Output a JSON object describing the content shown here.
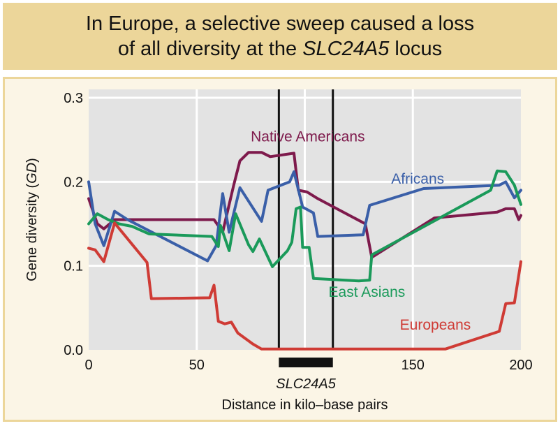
{
  "title": {
    "line1": "In Europe, a selective sweep caused a loss",
    "line2_prefix": "of all diversity at the ",
    "line2_gene": "SLC24A5",
    "line2_suffix": " locus"
  },
  "chart_data": {
    "type": "line",
    "title": "In Europe, a selective sweep caused a loss of all diversity at the SLC24A5 locus",
    "xlabel": "Distance in kilo–base pairs",
    "ylabel_prefix": "Gene diversity (",
    "ylabel_italic": "GD",
    "ylabel_suffix": ")",
    "xlim": [
      0,
      200
    ],
    "ylim": [
      0,
      0.31
    ],
    "x_ticks": [
      {
        "value": 0,
        "label": "0"
      },
      {
        "value": 50,
        "label": "50"
      },
      {
        "value": 150,
        "label": "150"
      },
      {
        "value": 200,
        "label": "200"
      }
    ],
    "y_ticks": [
      {
        "value": 0,
        "label": "0.0"
      },
      {
        "value": 0.1,
        "label": "0.1"
      },
      {
        "value": 0.2,
        "label": "0.2"
      },
      {
        "value": 0.3,
        "label": "0.3"
      }
    ],
    "x_gridlines": [
      50,
      100,
      150
    ],
    "y_gridlines": [
      0.1,
      0.2,
      0.3
    ],
    "grid": true,
    "gene": {
      "name": "SLC24A5",
      "start": 88,
      "end": 113
    },
    "gene_boundaries": [
      88,
      113
    ],
    "series": [
      {
        "name": "Native Americans",
        "color": "#7e1a4c",
        "label_at": [
          75,
          0.248
        ],
        "points": [
          [
            0,
            0.18
          ],
          [
            4,
            0.15
          ],
          [
            7,
            0.144
          ],
          [
            12,
            0.155
          ],
          [
            58,
            0.155
          ],
          [
            62,
            0.14
          ],
          [
            67,
            0.195
          ],
          [
            70,
            0.225
          ],
          [
            74,
            0.235
          ],
          [
            80,
            0.235
          ],
          [
            84,
            0.23
          ],
          [
            95,
            0.234
          ],
          [
            97,
            0.19
          ],
          [
            101,
            0.188
          ],
          [
            106,
            0.18
          ],
          [
            128,
            0.15
          ],
          [
            131,
            0.11
          ],
          [
            160,
            0.157
          ],
          [
            189,
            0.164
          ],
          [
            193,
            0.168
          ],
          [
            197,
            0.168
          ],
          [
            199,
            0.155
          ],
          [
            200,
            0.16
          ]
        ]
      },
      {
        "name": "Africans",
        "color": "#3a5fa8",
        "label_at": [
          140,
          0.198
        ],
        "points": [
          [
            0,
            0.2
          ],
          [
            3,
            0.15
          ],
          [
            7,
            0.124
          ],
          [
            12,
            0.165
          ],
          [
            18,
            0.155
          ],
          [
            55,
            0.106
          ],
          [
            59,
            0.124
          ],
          [
            62,
            0.186
          ],
          [
            65,
            0.14
          ],
          [
            70,
            0.193
          ],
          [
            80,
            0.153
          ],
          [
            83,
            0.19
          ],
          [
            93,
            0.2
          ],
          [
            95,
            0.212
          ],
          [
            99,
            0.17
          ],
          [
            104,
            0.163
          ],
          [
            106,
            0.135
          ],
          [
            127,
            0.137
          ],
          [
            130,
            0.172
          ],
          [
            155,
            0.192
          ],
          [
            190,
            0.196
          ],
          [
            193,
            0.2
          ],
          [
            197,
            0.181
          ],
          [
            200,
            0.19
          ]
        ]
      },
      {
        "name": "East Asians",
        "color": "#1a9a5a",
        "label_at": [
          111,
          0.063
        ],
        "points": [
          [
            0,
            0.15
          ],
          [
            4,
            0.162
          ],
          [
            9,
            0.155
          ],
          [
            14,
            0.15
          ],
          [
            20,
            0.147
          ],
          [
            28,
            0.138
          ],
          [
            57,
            0.135
          ],
          [
            60,
            0.123
          ],
          [
            61,
            0.148
          ],
          [
            65,
            0.118
          ],
          [
            68,
            0.162
          ],
          [
            74,
            0.125
          ],
          [
            76,
            0.117
          ],
          [
            79,
            0.132
          ],
          [
            85,
            0.099
          ],
          [
            92,
            0.118
          ],
          [
            94,
            0.128
          ],
          [
            96,
            0.168
          ],
          [
            98,
            0.17
          ],
          [
            99,
            0.122
          ],
          [
            102,
            0.122
          ],
          [
            104,
            0.085
          ],
          [
            125,
            0.082
          ],
          [
            130,
            0.083
          ],
          [
            131,
            0.113
          ],
          [
            186,
            0.19
          ],
          [
            189,
            0.213
          ],
          [
            193,
            0.212
          ],
          [
            197,
            0.196
          ],
          [
            200,
            0.173
          ]
        ]
      },
      {
        "name": "Europeans",
        "color": "#cf3b35",
        "label_at": [
          144,
          0.024
        ],
        "points": [
          [
            0,
            0.121
          ],
          [
            3,
            0.119
          ],
          [
            7,
            0.105
          ],
          [
            12,
            0.151
          ],
          [
            27,
            0.104
          ],
          [
            29,
            0.061
          ],
          [
            56,
            0.062
          ],
          [
            58,
            0.077
          ],
          [
            60,
            0.034
          ],
          [
            63,
            0.031
          ],
          [
            66,
            0.033
          ],
          [
            69,
            0.02
          ],
          [
            76,
            0.007
          ],
          [
            80,
            0.001
          ],
          [
            165,
            0.001
          ],
          [
            190,
            0.022
          ],
          [
            193,
            0.055
          ],
          [
            197,
            0.056
          ],
          [
            200,
            0.105
          ]
        ]
      }
    ]
  }
}
